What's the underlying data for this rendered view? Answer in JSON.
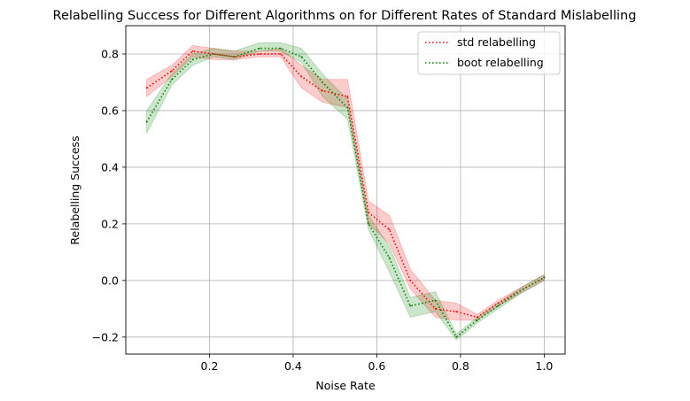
{
  "chart_data": {
    "type": "line",
    "title": "Relabelling Success for Different Algorithms on for Different Rates of Standard Mislabelling",
    "xlabel": "Noise Rate",
    "ylabel": "Relabelling Success",
    "xlim": [
      0.0,
      1.05
    ],
    "ylim": [
      -0.26,
      0.9
    ],
    "xticks": [
      0.2,
      0.4,
      0.6,
      0.8,
      1.0
    ],
    "xtick_labels": [
      "0.2",
      "0.4",
      "0.6",
      "0.8",
      "1.0"
    ],
    "yticks": [
      -0.2,
      0.0,
      0.2,
      0.4,
      0.6,
      0.8
    ],
    "ytick_labels": [
      "−0.2",
      "0.0",
      "0.2",
      "0.4",
      "0.6",
      "0.8"
    ],
    "grid": true,
    "legend_position": "top-right",
    "x": [
      0.05,
      0.11,
      0.16,
      0.21,
      0.26,
      0.32,
      0.37,
      0.42,
      0.47,
      0.53,
      0.58,
      0.63,
      0.68,
      0.74,
      0.79,
      0.84,
      0.89,
      0.95,
      1.0
    ],
    "series": [
      {
        "name": "std relabelling",
        "color": "#ff0000",
        "values": [
          0.68,
          0.74,
          0.81,
          0.8,
          0.79,
          0.8,
          0.8,
          0.72,
          0.67,
          0.65,
          0.24,
          0.18,
          0.0,
          -0.1,
          -0.11,
          -0.13,
          -0.08,
          -0.03,
          0.01
        ],
        "lower": [
          0.65,
          0.72,
          0.79,
          0.78,
          0.78,
          0.79,
          0.79,
          0.68,
          0.63,
          0.61,
          0.2,
          0.13,
          -0.03,
          -0.13,
          -0.14,
          -0.14,
          -0.09,
          -0.04,
          0.0
        ],
        "upper": [
          0.71,
          0.76,
          0.83,
          0.82,
          0.81,
          0.81,
          0.82,
          0.76,
          0.71,
          0.71,
          0.28,
          0.23,
          0.04,
          -0.07,
          -0.08,
          -0.12,
          -0.07,
          -0.02,
          0.02
        ]
      },
      {
        "name": "boot relabelling",
        "color": "#008000",
        "values": [
          0.56,
          0.71,
          0.78,
          0.8,
          0.79,
          0.82,
          0.82,
          0.79,
          0.7,
          0.61,
          0.2,
          0.08,
          -0.09,
          -0.07,
          -0.2,
          -0.14,
          -0.09,
          -0.03,
          0.01
        ],
        "lower": [
          0.52,
          0.69,
          0.76,
          0.79,
          0.78,
          0.81,
          0.81,
          0.77,
          0.65,
          0.57,
          0.18,
          0.03,
          -0.13,
          -0.11,
          -0.21,
          -0.15,
          -0.1,
          -0.04,
          0.0
        ],
        "upper": [
          0.6,
          0.73,
          0.8,
          0.82,
          0.81,
          0.84,
          0.84,
          0.82,
          0.73,
          0.64,
          0.23,
          0.12,
          -0.06,
          -0.04,
          -0.19,
          -0.13,
          -0.08,
          -0.02,
          0.02
        ]
      }
    ]
  }
}
